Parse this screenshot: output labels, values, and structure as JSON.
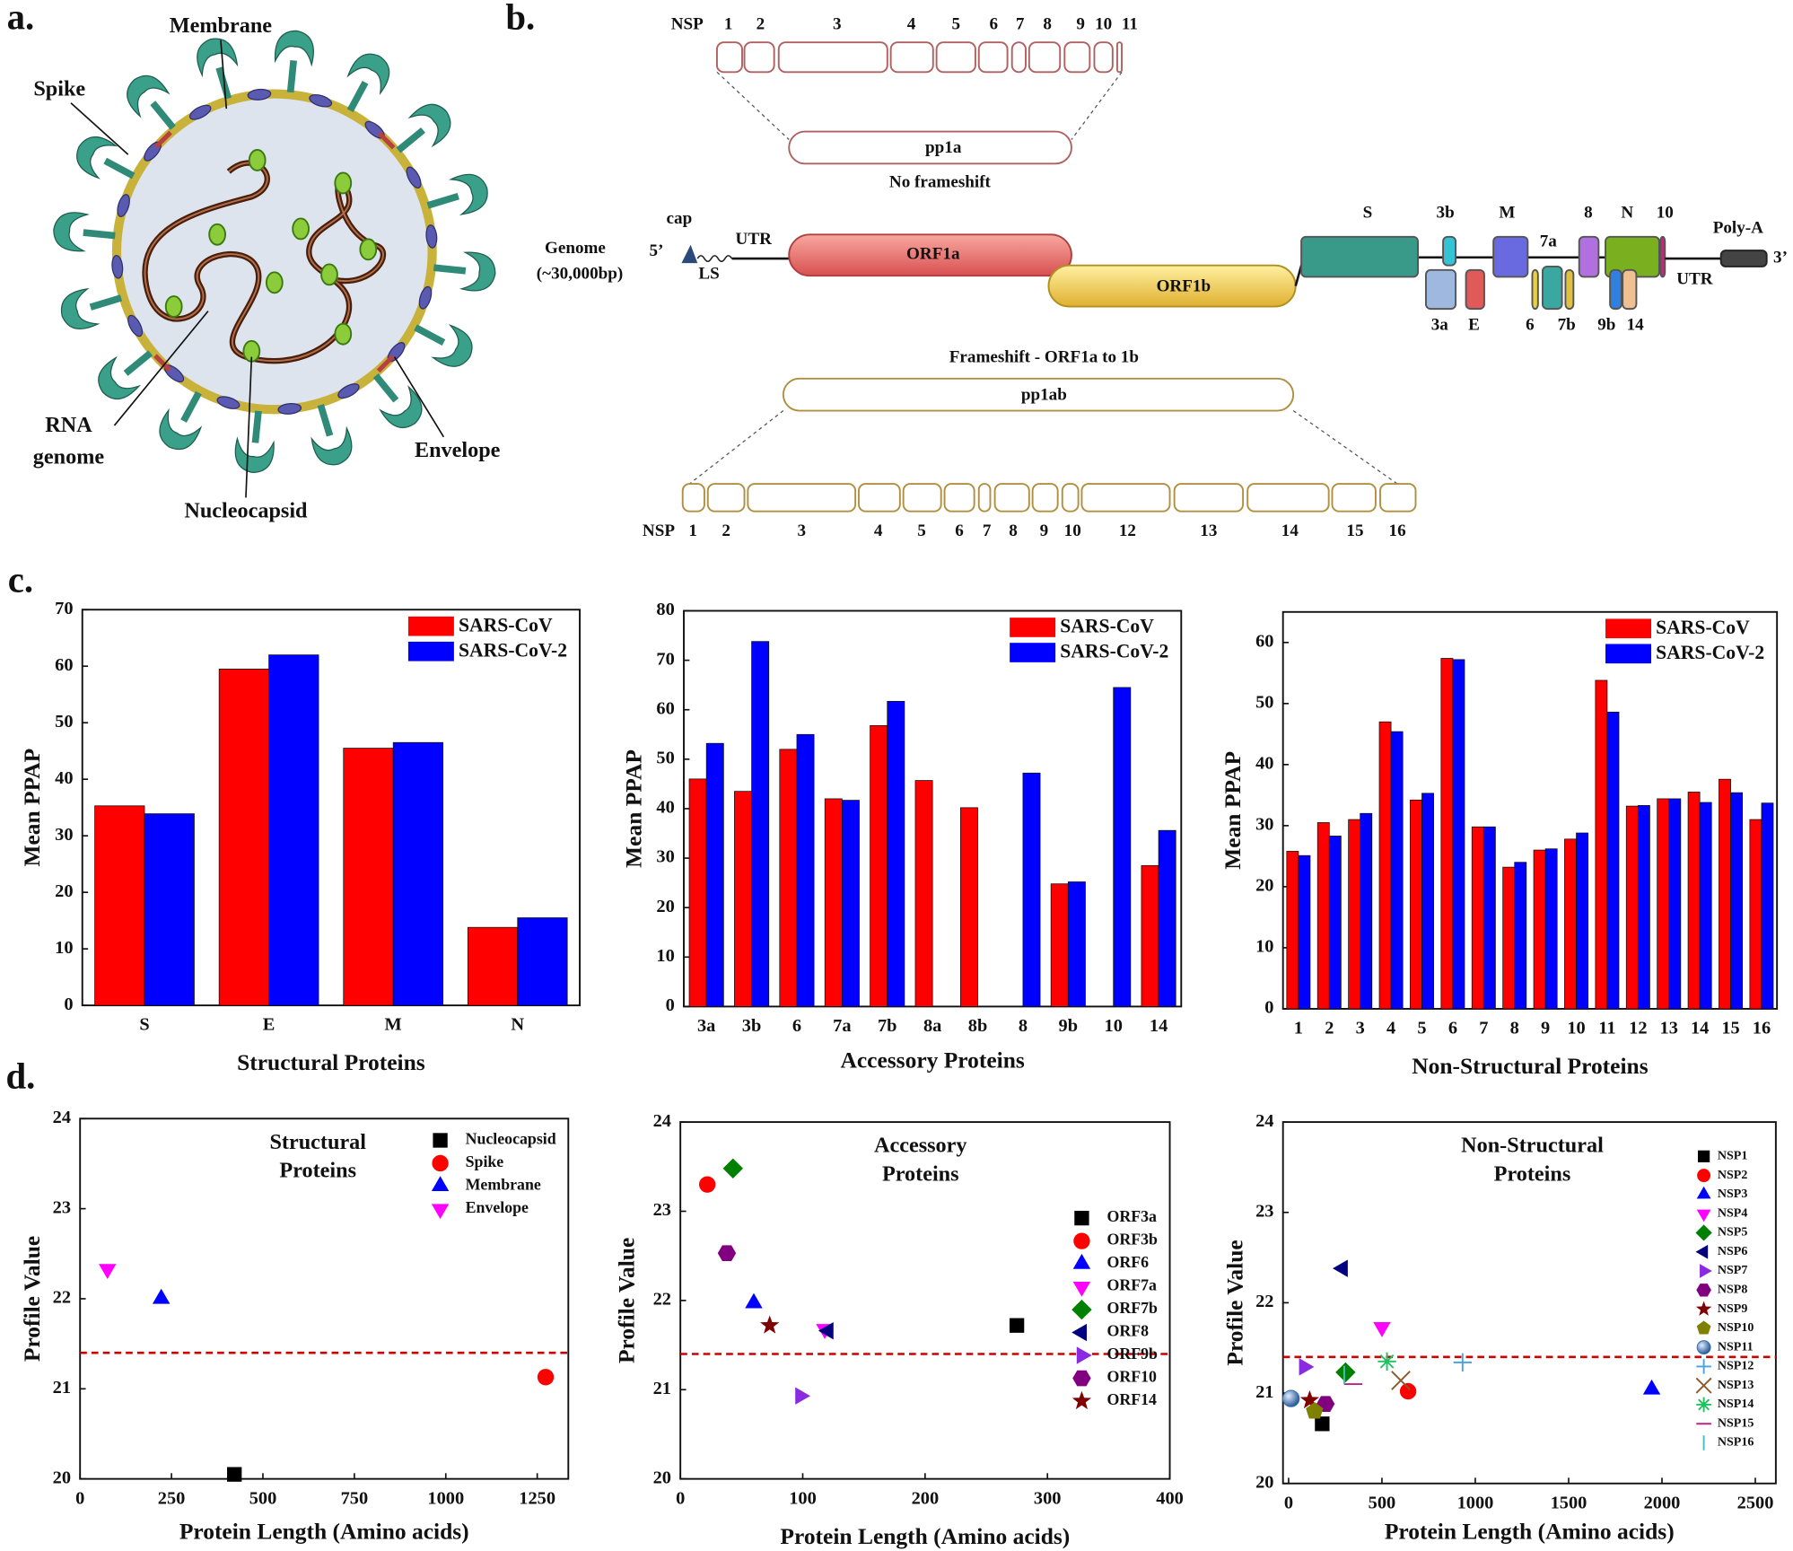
{
  "panel_labels": [
    "a.",
    "b.",
    "c.",
    "d."
  ],
  "virus": {
    "labels": {
      "membrane": "Membrane",
      "spike": "Spike",
      "rna_genome": [
        "RNA",
        "genome"
      ],
      "nucleocapsid": "Nucleocapsid",
      "envelope": "Envelope"
    }
  },
  "genome_map": {
    "top_nsp": {
      "label": "NSP",
      "numbers": [
        "1",
        "2",
        "3",
        "4",
        "5",
        "6",
        "7",
        "8",
        "9",
        "10",
        "11"
      ]
    },
    "pp1a": "pp1a",
    "no_frameshift": "No frameshift",
    "genome": "Genome",
    "genome_size": "(~30,000bp)",
    "five_prime": "5’",
    "cap": "cap",
    "ls": "LS",
    "utr5": "UTR",
    "orf1a": "ORF1a",
    "orf1b": "ORF1b",
    "genes": [
      "S",
      "3b",
      "3a",
      "E",
      "M",
      "6",
      "7a",
      "7b",
      "8",
      "N",
      "9b",
      "14",
      "10"
    ],
    "utr3": "UTR",
    "poly_a": "Poly-A",
    "three_prime": "3’",
    "frameshift": "Frameshift - ORF1a to 1b",
    "pp1ab": "pp1ab",
    "bottom_nsp": {
      "label": "NSP",
      "numbers": [
        "1",
        "2",
        "3",
        "4",
        "5",
        "6",
        "7",
        "8",
        "9",
        "10",
        "12",
        "13",
        "14",
        "15",
        "16"
      ]
    }
  },
  "chart_data": [
    {
      "type": "bar",
      "xlabel": "Structural Proteins",
      "ylabel": "Mean PPAP",
      "categories": [
        "S",
        "E",
        "M",
        "N"
      ],
      "series": [
        {
          "name": "SARS-CoV",
          "color": "#ff0000",
          "values": [
            35.3,
            59.5,
            45.5,
            13.8
          ]
        },
        {
          "name": "SARS-CoV-2",
          "color": "#0000ff",
          "values": [
            33.9,
            62,
            46.5,
            15.5
          ]
        }
      ],
      "ylim": [
        0,
        70
      ],
      "yticks": [
        0,
        10,
        20,
        30,
        40,
        50,
        60,
        70
      ],
      "legend": "upper right"
    },
    {
      "type": "bar",
      "xlabel": "Accessory Proteins",
      "ylabel": "Mean PPAP",
      "categories": [
        "3a",
        "3b",
        "6",
        "7a",
        "7b",
        "8a",
        "8b",
        "8",
        "9b",
        "10",
        "14"
      ],
      "series": [
        {
          "name": "SARS-CoV",
          "color": "#ff0000",
          "values": [
            46,
            43.5,
            52,
            42,
            56.8,
            45.7,
            40.2,
            null,
            24.8,
            null,
            28.5
          ]
        },
        {
          "name": "SARS-CoV-2",
          "color": "#0000ff",
          "values": [
            53.2,
            73.8,
            55,
            41.7,
            61.7,
            null,
            null,
            47.2,
            25.2,
            64.5,
            35.6
          ]
        }
      ],
      "ylim": [
        0,
        80
      ],
      "yticks": [
        0,
        10,
        20,
        30,
        40,
        50,
        60,
        70,
        80
      ],
      "legend": "upper right"
    },
    {
      "type": "bar",
      "xlabel": "Non-Structural Proteins",
      "ylabel": "Mean PPAP",
      "categories": [
        "1",
        "2",
        "3",
        "4",
        "5",
        "6",
        "7",
        "8",
        "9",
        "10",
        "11",
        "12",
        "13",
        "14",
        "15",
        "16"
      ],
      "series": [
        {
          "name": "SARS-CoV",
          "color": "#ff0000",
          "values": [
            25.8,
            30.5,
            31,
            47,
            34.2,
            57.4,
            29.8,
            23.2,
            26,
            27.8,
            53.8,
            33.2,
            34.4,
            35.5,
            37.6,
            31
          ]
        },
        {
          "name": "SARS-CoV-2",
          "color": "#0000ff",
          "values": [
            25.1,
            28.3,
            32,
            45.4,
            35.3,
            57.2,
            29.8,
            24,
            26.2,
            28.8,
            48.6,
            33.3,
            34.4,
            33.8,
            35.4,
            33.7
          ]
        }
      ],
      "ylim": [
        0,
        65
      ],
      "yticks": [
        0,
        10,
        20,
        30,
        40,
        50,
        60
      ],
      "legend": "upper right"
    },
    {
      "type": "scatter",
      "title": [
        "Structural",
        "Proteins"
      ],
      "xlabel": "Protein Length (Amino acids)",
      "ylabel": "Profile Value",
      "xlim": [
        0,
        1335
      ],
      "xticks": [
        0,
        250,
        500,
        750,
        1000,
        1250
      ],
      "ylim": [
        20,
        24
      ],
      "yticks": [
        20,
        21,
        22,
        23,
        24
      ],
      "reference_line": {
        "value": 21.4,
        "color": "#cc0000",
        "style": "dashed"
      },
      "legend": "upper right",
      "series": [
        {
          "name": "Nucleocapsid",
          "color": "#000000",
          "marker": "square",
          "x": [
            422
          ],
          "y": [
            20.05
          ]
        },
        {
          "name": "Spike",
          "color": "#ff0000",
          "marker": "circle",
          "x": [
            1273
          ],
          "y": [
            21.13
          ]
        },
        {
          "name": "Membrane",
          "color": "#0000ff",
          "marker": "triangle",
          "x": [
            222
          ],
          "y": [
            22.0
          ]
        },
        {
          "name": "Envelope",
          "color": "#ff00ff",
          "marker": "triangle-down",
          "x": [
            75
          ],
          "y": [
            22.33
          ]
        }
      ]
    },
    {
      "type": "scatter",
      "title": [
        "Accessory",
        "Proteins"
      ],
      "xlabel": "Protein Length (Amino acids)",
      "ylabel": "Profile Value",
      "xlim": [
        0,
        400
      ],
      "xticks": [
        0,
        100,
        200,
        300,
        400
      ],
      "ylim": [
        20,
        24
      ],
      "yticks": [
        20,
        21,
        22,
        23,
        24
      ],
      "reference_line": {
        "value": 21.4,
        "color": "#cc0000",
        "style": "dashed"
      },
      "legend": "right",
      "series": [
        {
          "name": "ORF3a",
          "color": "#000000",
          "marker": "square",
          "x": [
            275
          ],
          "y": [
            21.72
          ]
        },
        {
          "name": "ORF3b",
          "color": "#ff0000",
          "marker": "circle",
          "x": [
            22
          ],
          "y": [
            23.3
          ]
        },
        {
          "name": "ORF6",
          "color": "#0000ff",
          "marker": "triangle",
          "x": [
            60
          ],
          "y": [
            21.97
          ]
        },
        {
          "name": "ORF7a",
          "color": "#ff00ff",
          "marker": "triangle-down",
          "x": [
            118
          ],
          "y": [
            21.68
          ]
        },
        {
          "name": "ORF7b",
          "color": "#008000",
          "marker": "diamond",
          "x": [
            43
          ],
          "y": [
            23.48
          ]
        },
        {
          "name": "ORF8",
          "color": "#000080",
          "marker": "triangle-left",
          "x": [
            121
          ],
          "y": [
            21.66
          ]
        },
        {
          "name": "ORF9b",
          "color": "#8a2be2",
          "marker": "triangle-right",
          "x": [
            98
          ],
          "y": [
            20.93
          ]
        },
        {
          "name": "ORF10",
          "color": "#800080",
          "marker": "hexagon",
          "x": [
            38
          ],
          "y": [
            22.53
          ]
        },
        {
          "name": "ORF14",
          "color": "#800000",
          "marker": "star",
          "x": [
            73
          ],
          "y": [
            21.72
          ]
        }
      ]
    },
    {
      "type": "scatter",
      "title": [
        "Non-Structural",
        "Proteins"
      ],
      "xlabel": "Protein Length (Amino acids)",
      "ylabel": "Profile Value",
      "xlim": [
        -30,
        2610
      ],
      "xticks": [
        0,
        500,
        1000,
        1500,
        2000,
        2500
      ],
      "ylim": [
        20,
        24
      ],
      "yticks": [
        20,
        21,
        22,
        23,
        24
      ],
      "reference_line": {
        "value": 21.4,
        "color": "#cc0000",
        "style": "dashed"
      },
      "legend": "upper right",
      "series": [
        {
          "name": "NSP1",
          "color": "#000000",
          "marker": "square",
          "x": [
            180
          ],
          "y": [
            20.66
          ]
        },
        {
          "name": "NSP2",
          "color": "#ff0000",
          "marker": "circle",
          "x": [
            640
          ],
          "y": [
            21.02
          ]
        },
        {
          "name": "NSP3",
          "color": "#0000ff",
          "marker": "triangle",
          "x": [
            1945
          ],
          "y": [
            21.04
          ]
        },
        {
          "name": "NSP4",
          "color": "#ff00ff",
          "marker": "triangle-down",
          "x": [
            500
          ],
          "y": [
            21.73
          ]
        },
        {
          "name": "NSP5",
          "color": "#008000",
          "marker": "diamond",
          "x": [
            305
          ],
          "y": [
            21.23
          ]
        },
        {
          "name": "NSP6",
          "color": "#000080",
          "marker": "triangle-left",
          "x": [
            290
          ],
          "y": [
            22.38
          ]
        },
        {
          "name": "NSP7",
          "color": "#8a2be2",
          "marker": "triangle-right",
          "x": [
            83
          ],
          "y": [
            21.29
          ]
        },
        {
          "name": "NSP8",
          "color": "#800080",
          "marker": "hexagon",
          "x": [
            198
          ],
          "y": [
            20.88
          ]
        },
        {
          "name": "NSP9",
          "color": "#800000",
          "marker": "star",
          "x": [
            113
          ],
          "y": [
            20.92
          ]
        },
        {
          "name": "NSP10",
          "color": "#808000",
          "marker": "pentagon",
          "x": [
            139
          ],
          "y": [
            20.8
          ]
        },
        {
          "name": "NSP11",
          "color": "#3070b0",
          "marker": "sphere",
          "x": [
            13
          ],
          "y": [
            20.94
          ]
        },
        {
          "name": "NSP12",
          "color": "#4aa0e0",
          "marker": "plus",
          "x": [
            932
          ],
          "y": [
            21.34
          ]
        },
        {
          "name": "NSP13",
          "color": "#8b5a2b",
          "marker": "x",
          "x": [
            601
          ],
          "y": [
            21.14
          ]
        },
        {
          "name": "NSP14",
          "color": "#20c060",
          "marker": "asterisk",
          "x": [
            527
          ],
          "y": [
            21.35
          ]
        },
        {
          "name": "NSP15",
          "color": "#c02080",
          "marker": "hline",
          "x": [
            346
          ],
          "y": [
            21.1
          ]
        },
        {
          "name": "NSP16",
          "color": "#40c0c0",
          "marker": "vline",
          "x": [
            298
          ],
          "y": [
            21.2
          ]
        }
      ]
    }
  ]
}
